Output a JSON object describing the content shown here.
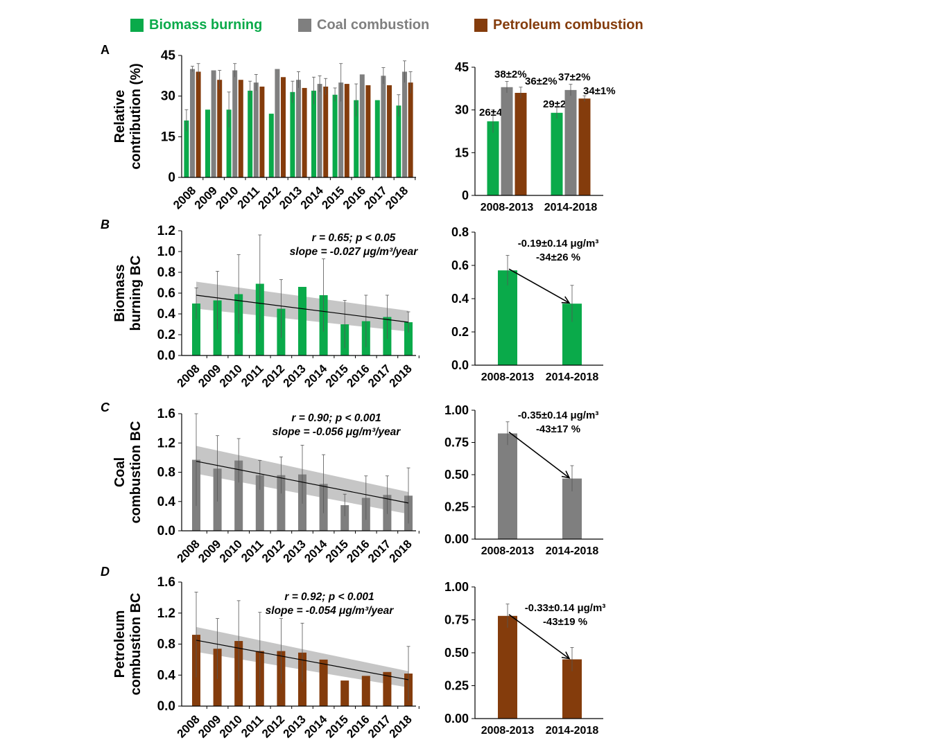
{
  "colors": {
    "biomass": "#0aaa4a",
    "coal": "#7f7f7f",
    "petroleum": "#843c0c",
    "band": "#bcbcbc"
  },
  "legend": [
    {
      "label": "Biomass burning",
      "color": "#0aaa4a"
    },
    {
      "label": "Coal combustion",
      "color": "#7f7f7f"
    },
    {
      "label": "Petroleum combustion",
      "color": "#843c0c"
    }
  ],
  "panel_labels": [
    "A",
    "B",
    "C",
    "D"
  ],
  "chart_data": [
    {
      "id": "A-left",
      "type": "bar",
      "ylabel": [
        "Relative",
        "contribution (%)"
      ],
      "ylim": [
        0,
        45
      ],
      "yticks": [
        0,
        15,
        30,
        45
      ],
      "categories": [
        "2008",
        "2009",
        "2010",
        "2011",
        "2012",
        "2013",
        "2014",
        "2015",
        "2016",
        "2017",
        "2018"
      ],
      "series": [
        {
          "name": "Biomass burning",
          "color": "#0aaa4a",
          "values": [
            21,
            25,
            25,
            32,
            23.5,
            31.5,
            32,
            30.5,
            28.5,
            28.5,
            26.5
          ],
          "err": [
            4,
            0,
            6.5,
            3.5,
            0,
            4,
            5,
            2.5,
            6,
            0,
            4
          ]
        },
        {
          "name": "Coal combustion",
          "color": "#7f7f7f",
          "values": [
            40,
            39.5,
            39.5,
            35,
            40,
            36,
            34.5,
            35,
            38,
            37.5,
            39
          ],
          "err": [
            1,
            0,
            2.5,
            3,
            0,
            3,
            3,
            7,
            0,
            3,
            4
          ]
        },
        {
          "name": "Petroleum combustion",
          "color": "#843c0c",
          "values": [
            39,
            36,
            36,
            33.5,
            37,
            33,
            33.5,
            34.5,
            34,
            34,
            35
          ],
          "err": [
            3,
            3.5,
            0,
            0,
            0,
            0,
            3,
            0,
            0,
            0,
            4
          ]
        }
      ]
    },
    {
      "id": "A-right",
      "type": "bar",
      "ylim": [
        0,
        45
      ],
      "yticks": [
        0,
        15,
        30,
        45
      ],
      "categories": [
        "2008-2013",
        "2014-2018"
      ],
      "series": [
        {
          "name": "Biomass burning",
          "color": "#0aaa4a",
          "values": [
            26,
            29
          ],
          "err": [
            4,
            2
          ],
          "labels": [
            "26±4%",
            "29±2%"
          ]
        },
        {
          "name": "Coal combustion",
          "color": "#7f7f7f",
          "values": [
            38,
            37
          ],
          "err": [
            2,
            2
          ],
          "labels": [
            "38±2%",
            "37±2%"
          ]
        },
        {
          "name": "Petroleum combustion",
          "color": "#843c0c",
          "values": [
            36,
            34
          ],
          "err": [
            2,
            1
          ],
          "labels": [
            "36±2%",
            "34±1%"
          ]
        }
      ]
    },
    {
      "id": "B-left",
      "type": "bar",
      "ylabel": [
        "Biomass",
        "burning BC"
      ],
      "ylim": [
        0,
        1.2
      ],
      "yticks": [
        "0.0",
        "0.2",
        "0.4",
        "0.6",
        "0.8",
        "1.0",
        "1.2"
      ],
      "categories": [
        "2008",
        "2009",
        "2010",
        "2011",
        "2012",
        "2013",
        "2014",
        "2015",
        "2016",
        "2017",
        "2018"
      ],
      "series": [
        {
          "name": "Biomass burning",
          "color": "#0aaa4a",
          "values": [
            0.5,
            0.53,
            0.59,
            0.69,
            0.45,
            0.66,
            0.58,
            0.3,
            0.33,
            0.37,
            0.32
          ],
          "err": [
            0.15,
            0.28,
            0.38,
            0.47,
            0.28,
            0,
            0.35,
            0.23,
            0.25,
            0.21,
            0.1
          ]
        }
      ],
      "trend": {
        "start": 0.58,
        "end": 0.32,
        "band_lo": [
          0.45,
          0.23
        ],
        "band_hi": [
          0.71,
          0.43
        ]
      },
      "annotation": [
        "r = 0.65; p < 0.05",
        "slope = -0.027 μg/m³/year"
      ]
    },
    {
      "id": "B-right",
      "type": "bar",
      "ylim": [
        0,
        0.8
      ],
      "yticks": [
        "0.0",
        "0.2",
        "0.4",
        "0.6",
        "0.8"
      ],
      "categories": [
        "2008-2013",
        "2014-2018"
      ],
      "series": [
        {
          "name": "Biomass burning",
          "color": "#0aaa4a",
          "values": [
            0.57,
            0.37
          ],
          "err": [
            0.09,
            0.11
          ]
        }
      ],
      "annotation": [
        "-0.19±0.14 μg/m³",
        "-34±26 %"
      ]
    },
    {
      "id": "C-left",
      "type": "bar",
      "ylabel": [
        "Coal",
        "combustion BC"
      ],
      "ylim": [
        0,
        1.6
      ],
      "yticks": [
        "0.0",
        "0.4",
        "0.8",
        "1.2",
        "1.6"
      ],
      "categories": [
        "2008",
        "2009",
        "2010",
        "2011",
        "2012",
        "2013",
        "2014",
        "2015",
        "2016",
        "2017",
        "2018"
      ],
      "series": [
        {
          "name": "Coal combustion",
          "color": "#7f7f7f",
          "values": [
            0.97,
            0.85,
            0.96,
            0.76,
            0.76,
            0.77,
            0.64,
            0.35,
            0.45,
            0.49,
            0.48
          ],
          "err": [
            0.63,
            0.45,
            0.3,
            0.2,
            0.25,
            0.4,
            0.4,
            0.15,
            0.3,
            0.26,
            0.38
          ]
        }
      ],
      "trend": {
        "start": 0.95,
        "end": 0.38,
        "band_lo": [
          0.78,
          0.23
        ],
        "band_hi": [
          1.16,
          0.53
        ]
      },
      "annotation": [
        "r = 0.90; p < 0.001",
        "slope = -0.056 μg/m³/year"
      ]
    },
    {
      "id": "C-right",
      "type": "bar",
      "ylim": [
        0,
        1
      ],
      "yticks": [
        "0.00",
        "0.25",
        "0.50",
        "0.75",
        "1.00"
      ],
      "categories": [
        "2008-2013",
        "2014-2018"
      ],
      "series": [
        {
          "name": "Coal combustion",
          "color": "#7f7f7f",
          "values": [
            0.82,
            0.47
          ],
          "err": [
            0.09,
            0.1
          ]
        }
      ],
      "annotation": [
        "-0.35±0.14 μg/m³",
        "-43±17 %"
      ]
    },
    {
      "id": "D-left",
      "type": "bar",
      "ylabel": [
        "Petroleum",
        "combustion BC"
      ],
      "ylim": [
        0,
        1.6
      ],
      "yticks": [
        "0.0",
        "0.4",
        "0.8",
        "1.2",
        "1.6"
      ],
      "categories": [
        "2008",
        "2009",
        "2010",
        "2011",
        "2012",
        "2013",
        "2014",
        "2015",
        "2016",
        "2017",
        "2018"
      ],
      "series": [
        {
          "name": "Petroleum combustion",
          "color": "#843c0c",
          "values": [
            0.92,
            0.74,
            0.84,
            0.71,
            0.71,
            0.69,
            0.6,
            0.33,
            0.39,
            0.44,
            0.42
          ],
          "err": [
            0.55,
            0.39,
            0.52,
            0.5,
            0.42,
            0.38,
            0,
            0,
            0,
            0,
            0.35
          ]
        }
      ],
      "trend": {
        "start": 0.85,
        "end": 0.34,
        "band_lo": [
          0.7,
          0.24
        ],
        "band_hi": [
          1.02,
          0.45
        ]
      },
      "annotation": [
        "r = 0.92; p < 0.001",
        "slope = -0.054 μg/m³/year"
      ]
    },
    {
      "id": "D-right",
      "type": "bar",
      "ylim": [
        0,
        1
      ],
      "yticks": [
        "0.00",
        "0.25",
        "0.50",
        "0.75",
        "1.00"
      ],
      "categories": [
        "2008-2013",
        "2014-2018"
      ],
      "series": [
        {
          "name": "Petroleum combustion",
          "color": "#843c0c",
          "values": [
            0.78,
            0.45
          ],
          "err": [
            0.09,
            0.09
          ]
        }
      ],
      "annotation": [
        "-0.33±0.14 μg/m³",
        "-43±19 %"
      ]
    }
  ]
}
